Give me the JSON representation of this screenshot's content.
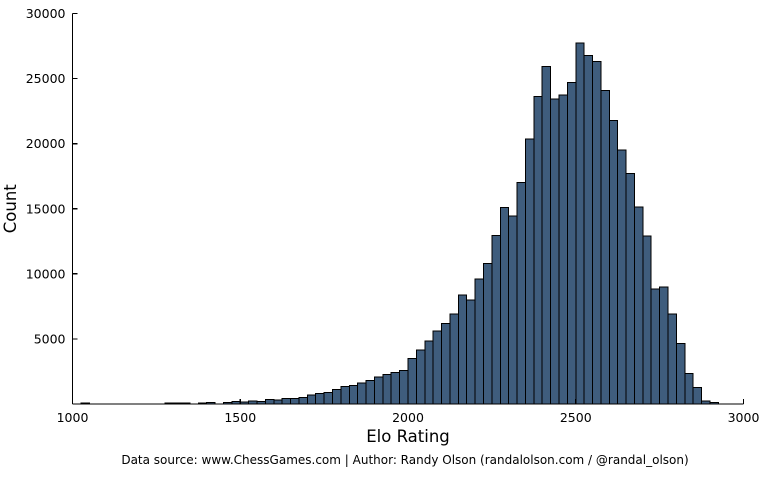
{
  "chart_data": {
    "type": "bar",
    "subtype": "histogram",
    "title": "",
    "xlabel": "Elo Rating",
    "ylabel": "Count",
    "xlim": [
      1000,
      3000
    ],
    "ylim": [
      0,
      30000
    ],
    "xticks": [
      1000,
      1500,
      2000,
      2500,
      3000
    ],
    "yticks": [
      5000,
      10000,
      15000,
      20000,
      25000,
      30000
    ],
    "grid": false,
    "legend": false,
    "bin_start": 1000,
    "bin_width": 25,
    "values": [
      0,
      90,
      0,
      0,
      0,
      0,
      0,
      0,
      0,
      0,
      0,
      90,
      90,
      90,
      0,
      90,
      100,
      0,
      130,
      180,
      160,
      250,
      200,
      330,
      310,
      430,
      430,
      500,
      690,
      790,
      900,
      1100,
      1360,
      1440,
      1610,
      1820,
      2080,
      2280,
      2410,
      2590,
      3510,
      4130,
      4840,
      5610,
      6180,
      6900,
      8360,
      8000,
      9590,
      10790,
      12950,
      15100,
      14460,
      17020,
      20360,
      23610,
      25920,
      23430,
      23740,
      24710,
      27720,
      26770,
      26330,
      24080,
      21770,
      19500,
      17700,
      15150,
      12920,
      8820,
      9000,
      6900,
      4640,
      2330,
      1250,
      250,
      100,
      0,
      0,
      0
    ],
    "bar_color": "#3f5d7d",
    "bar_edge_color": "#000000",
    "axis_color": "#000000",
    "text_color": "#000000"
  },
  "footer": {
    "text": "Data source: www.ChessGames.com | Author: Randy Olson (randalolson.com / @randal_olson)"
  }
}
